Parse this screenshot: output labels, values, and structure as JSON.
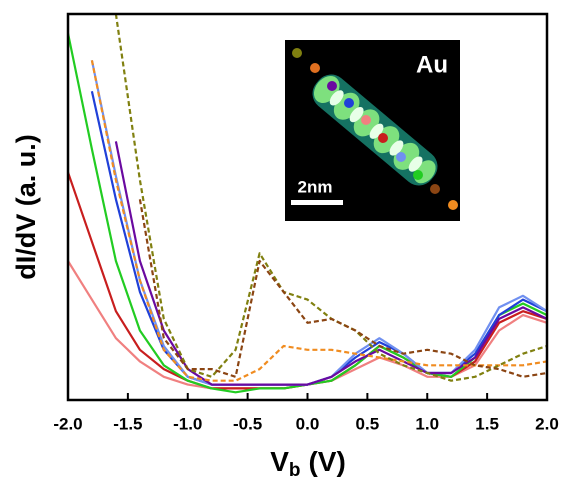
{
  "chart_data": {
    "type": "line",
    "x_label": {
      "main": "V",
      "sub": "b",
      "unit": "(V)"
    },
    "y_label": "dI/dV (a. u.)",
    "inset_labels": [
      "Au",
      "2nm"
    ],
    "x": [
      -2.0,
      -1.8,
      -1.6,
      -1.4,
      -1.2,
      -1.0,
      -0.8,
      -0.6,
      -0.4,
      -0.2,
      0,
      0.2,
      0.4,
      0.6,
      0.8,
      1.0,
      1.2,
      1.4,
      1.6,
      1.8,
      2.0
    ],
    "xlim": [
      -2.0,
      2.0
    ],
    "ylim": [
      0,
      100
    ],
    "xticks": [
      {
        "value": -2.0,
        "label": "-2.0"
      },
      -1.5,
      {
        "value": -1.0,
        "label": "-1.0"
      },
      -0.5,
      {
        "value": 0,
        "label": "0.0"
      },
      0.5,
      {
        "value": 1.0,
        "label": "1.0"
      },
      1.5,
      {
        "value": 2.0,
        "label": "2.0"
      }
    ],
    "series": [
      {
        "color": "#f08080",
        "dashed": false,
        "values": [
          36,
          26,
          16,
          10,
          6,
          4,
          3,
          3,
          3,
          3,
          4,
          5,
          8,
          11,
          9,
          6,
          6,
          9,
          18,
          22,
          20
        ]
      },
      {
        "color": "#c81e1e",
        "dashed": false,
        "values": [
          59,
          41,
          23,
          13,
          8,
          5,
          3,
          3,
          3,
          3,
          4,
          5,
          9,
          14,
          11,
          7,
          6,
          10,
          20,
          23,
          21
        ]
      },
      {
        "color": "#22cc22",
        "dashed": false,
        "values": [
          95,
          65,
          36,
          18,
          9,
          5,
          3,
          2,
          3,
          3,
          4,
          5,
          9,
          14,
          11,
          7,
          6,
          11,
          22,
          25,
          22
        ]
      },
      {
        "color": "#2040d8",
        "dashed": false,
        "values": [
          null,
          80,
          52,
          28,
          13,
          6,
          4,
          4,
          4,
          4,
          4,
          6,
          11,
          15,
          12,
          7,
          7,
          12,
          22,
          26,
          23
        ]
      },
      {
        "color": "#7090f0",
        "dashed": false,
        "values": [
          null,
          88,
          58,
          31,
          14,
          6,
          4,
          4,
          4,
          4,
          4,
          6,
          12,
          16,
          12,
          7,
          7,
          13,
          24,
          27,
          23
        ]
      },
      {
        "color": "#6a0aa0",
        "dashed": false,
        "values": [
          null,
          null,
          67,
          36,
          18,
          8,
          4,
          4,
          4,
          4,
          4,
          6,
          10,
          13,
          10,
          7,
          7,
          11,
          21,
          24,
          21
        ]
      },
      {
        "color": "#f08c20",
        "dashed": true,
        "values": [
          null,
          88,
          57,
          31,
          13,
          6,
          5,
          5,
          8,
          14,
          13,
          13,
          12,
          11,
          10,
          9,
          9,
          9,
          9,
          9,
          10
        ]
      },
      {
        "color": "#808010",
        "dashed": true,
        "values": [
          null,
          null,
          100,
          57,
          21,
          8,
          6,
          13,
          38,
          28,
          26,
          21,
          18,
          12,
          9,
          7,
          5,
          6,
          9,
          12,
          14
        ]
      },
      {
        "color": "#8b4513",
        "dashed": true,
        "values": [
          null,
          null,
          null,
          52,
          16,
          8,
          8,
          6,
          36,
          28,
          20,
          21,
          18,
          14,
          12,
          13,
          12,
          9,
          8,
          6,
          7
        ]
      }
    ]
  }
}
